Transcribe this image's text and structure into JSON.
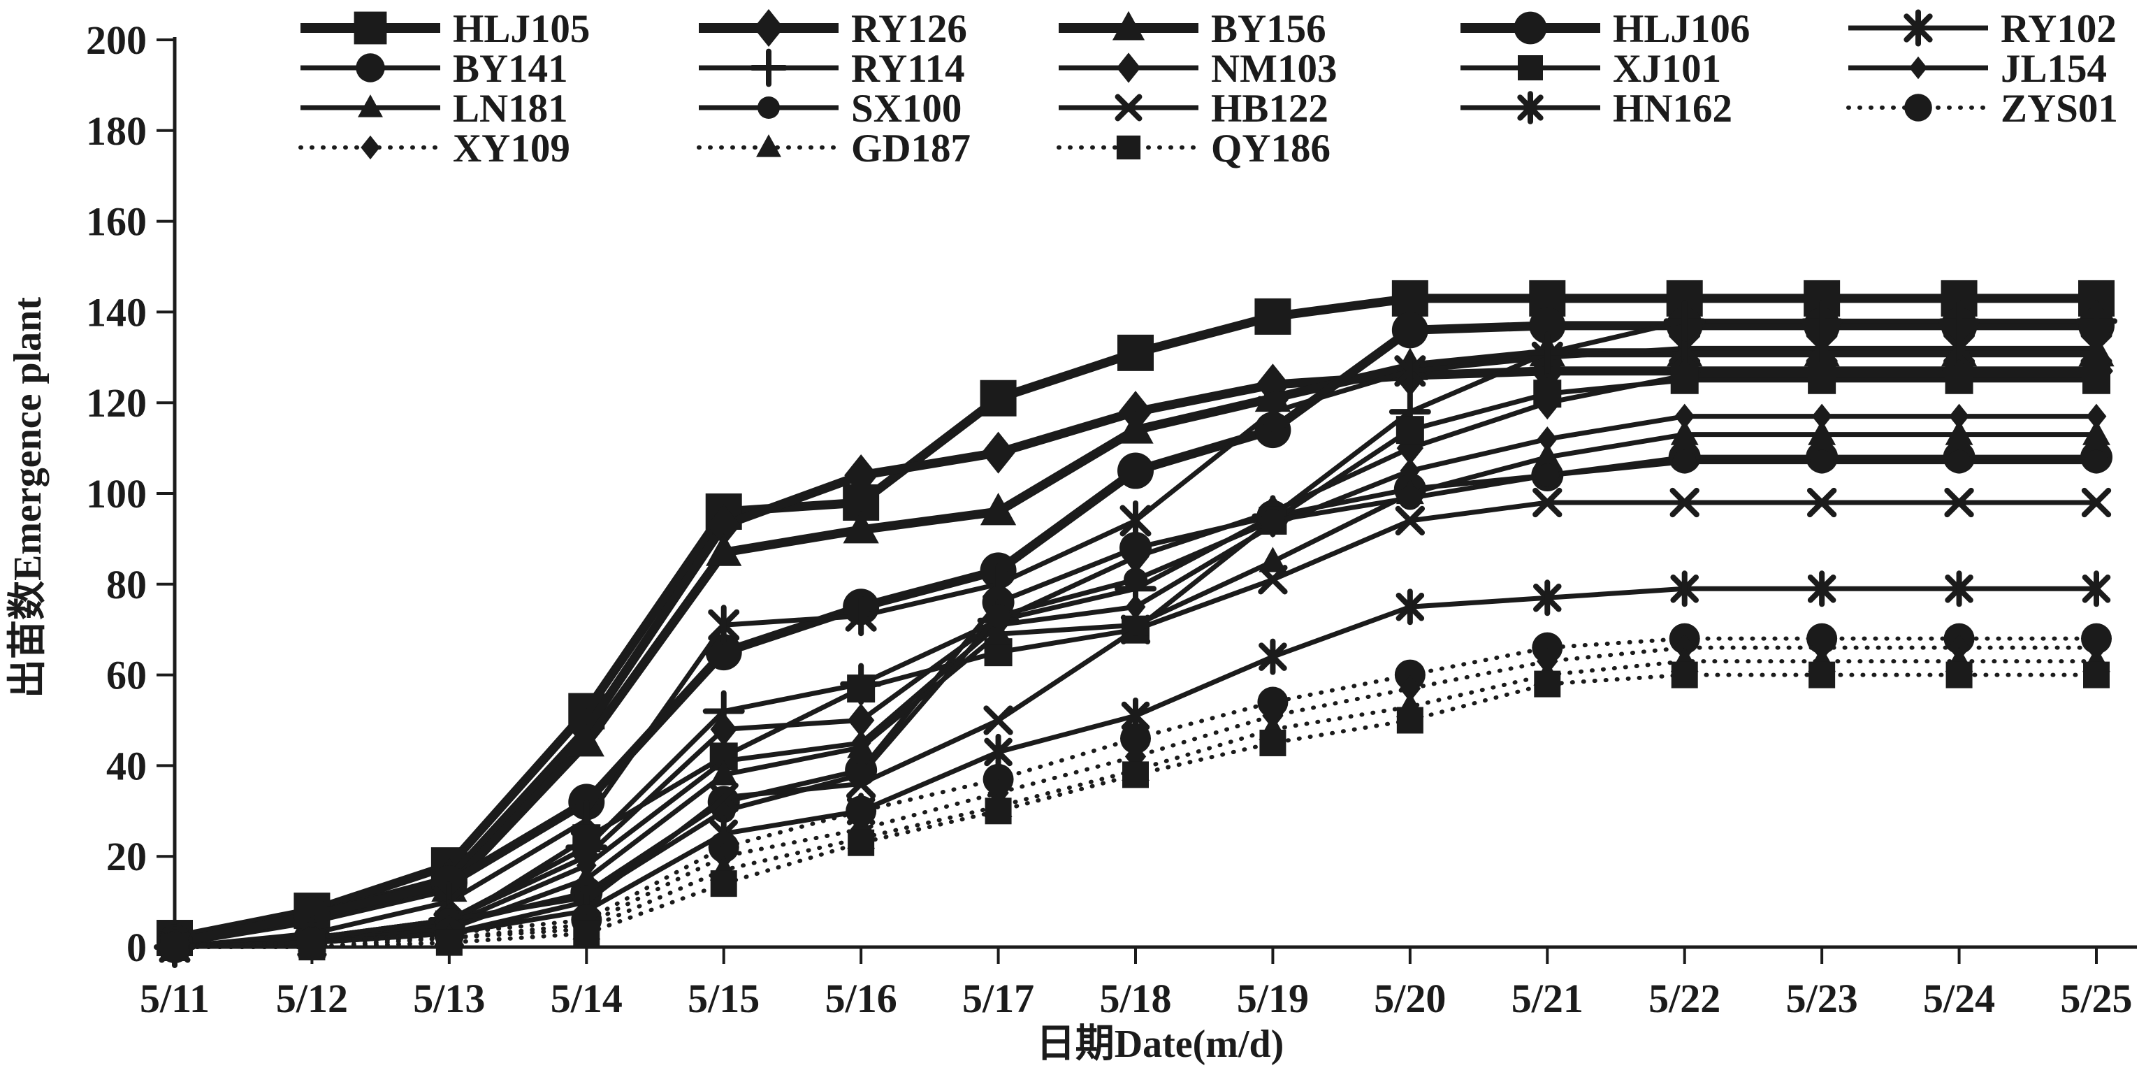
{
  "colors": {
    "ink": "#1b1b1b",
    "background": "#ffffff"
  },
  "chart_data": {
    "type": "line",
    "title": "",
    "xlabel": "日期Date(m/d)",
    "ylabel": "出苗数Emergence plant",
    "x_categories": [
      "5/11",
      "5/12",
      "5/13",
      "5/14",
      "5/15",
      "5/16",
      "5/17",
      "5/18",
      "5/19",
      "5/20",
      "5/21",
      "5/22",
      "5/23",
      "5/24",
      "5/25"
    ],
    "ylim": [
      0,
      200
    ],
    "ytick_step": 20,
    "yticks": [
      0,
      20,
      40,
      60,
      80,
      100,
      120,
      140,
      160,
      180,
      200
    ],
    "grid": false,
    "legend_position": "top",
    "legend_columns": 5,
    "series": [
      {
        "name": "HLJ105",
        "marker": "square",
        "size": 26,
        "line": "thick",
        "values": [
          2,
          8,
          18,
          52,
          96,
          98,
          121,
          131,
          139,
          143,
          143,
          143,
          143,
          143,
          143
        ]
      },
      {
        "name": "RY126",
        "marker": "diamond",
        "size": 30,
        "line": "thick",
        "values": [
          1,
          7,
          15,
          48,
          93,
          104,
          109,
          118,
          124,
          126,
          127,
          127,
          127,
          127,
          127
        ]
      },
      {
        "name": "BY156",
        "marker": "triangle",
        "size": 27,
        "line": "thick",
        "values": [
          1,
          6,
          13,
          45,
          87,
          92,
          96,
          114,
          121,
          128,
          131,
          131,
          131,
          131,
          131
        ]
      },
      {
        "name": "HLJ106",
        "marker": "circle",
        "size": 26,
        "line": "thick",
        "values": [
          1,
          7,
          14,
          32,
          65,
          75,
          83,
          105,
          114,
          136,
          137,
          137,
          137,
          137,
          137
        ]
      },
      {
        "name": "RY102",
        "marker": "asterisk",
        "size": 25,
        "line": "thin",
        "values": [
          0,
          3,
          10,
          28,
          71,
          73,
          80,
          94,
          118,
          127,
          130,
          132,
          132,
          132,
          132
        ]
      },
      {
        "name": "BY141",
        "marker": "circle",
        "size": 23,
        "line": "thin",
        "values": [
          0,
          2,
          5,
          12,
          32,
          39,
          76,
          88,
          95,
          101,
          104,
          108,
          108,
          108,
          108
        ]
      },
      {
        "name": "RY114",
        "marker": "plus",
        "size": 26,
        "line": "thin",
        "values": [
          0,
          2,
          6,
          22,
          52,
          58,
          72,
          79,
          95,
          118,
          131,
          138,
          138,
          138,
          138
        ]
      },
      {
        "name": "NM103",
        "marker": "diamond",
        "size": 24,
        "line": "thin",
        "values": [
          0,
          2,
          6,
          20,
          48,
          50,
          72,
          86,
          96,
          110,
          120,
          126,
          126,
          126,
          126
        ]
      },
      {
        "name": "XJ101",
        "marker": "square",
        "size": 20,
        "line": "thin",
        "values": [
          0,
          2,
          5,
          24,
          42,
          57,
          65,
          70,
          94,
          114,
          122,
          125,
          125,
          125,
          125
        ]
      },
      {
        "name": "JL154",
        "marker": "diamond",
        "size": 18,
        "line": "thin",
        "values": [
          0,
          2,
          5,
          18,
          41,
          45,
          71,
          75,
          93,
          105,
          112,
          117,
          117,
          117,
          117
        ]
      },
      {
        "name": "LN181",
        "marker": "triangle",
        "size": 21,
        "line": "thin",
        "values": [
          0,
          1,
          4,
          15,
          38,
          44,
          69,
          71,
          85,
          100,
          108,
          113,
          113,
          113,
          113
        ]
      },
      {
        "name": "SX100",
        "marker": "circle",
        "size": 17,
        "line": "thin",
        "values": [
          0,
          2,
          6,
          11,
          30,
          38,
          73,
          81,
          94,
          99,
          104,
          107,
          107,
          107,
          107
        ]
      },
      {
        "name": "HB122",
        "marker": "x",
        "size": 22,
        "line": "thin",
        "values": [
          0,
          1,
          3,
          10,
          33,
          36,
          50,
          70,
          81,
          94,
          98,
          98,
          98,
          98,
          98
        ]
      },
      {
        "name": "HN162",
        "marker": "asterisk",
        "size": 22,
        "line": "thin",
        "values": [
          0,
          1,
          3,
          8,
          25,
          30,
          43,
          51,
          64,
          75,
          77,
          79,
          79,
          79,
          79
        ]
      },
      {
        "name": "ZYS01",
        "marker": "circle",
        "size": 22,
        "line": "dotted",
        "values": [
          0,
          1,
          3,
          6,
          22,
          30,
          37,
          46,
          54,
          60,
          66,
          68,
          68,
          68,
          68
        ]
      },
      {
        "name": "XY109",
        "marker": "diamond",
        "size": 19,
        "line": "dotted",
        "values": [
          0,
          1,
          2,
          5,
          20,
          26,
          34,
          42,
          51,
          57,
          63,
          66,
          66,
          66,
          66
        ]
      },
      {
        "name": "GD187",
        "marker": "triangle",
        "size": 21,
        "line": "dotted",
        "values": [
          0,
          0,
          2,
          4,
          17,
          24,
          31,
          39,
          48,
          53,
          60,
          63,
          63,
          63,
          63
        ]
      },
      {
        "name": "QY186",
        "marker": "square",
        "size": 19,
        "line": "dotted",
        "values": [
          0,
          0,
          1,
          3,
          14,
          23,
          30,
          38,
          45,
          50,
          58,
          60,
          60,
          60,
          60
        ]
      }
    ]
  }
}
